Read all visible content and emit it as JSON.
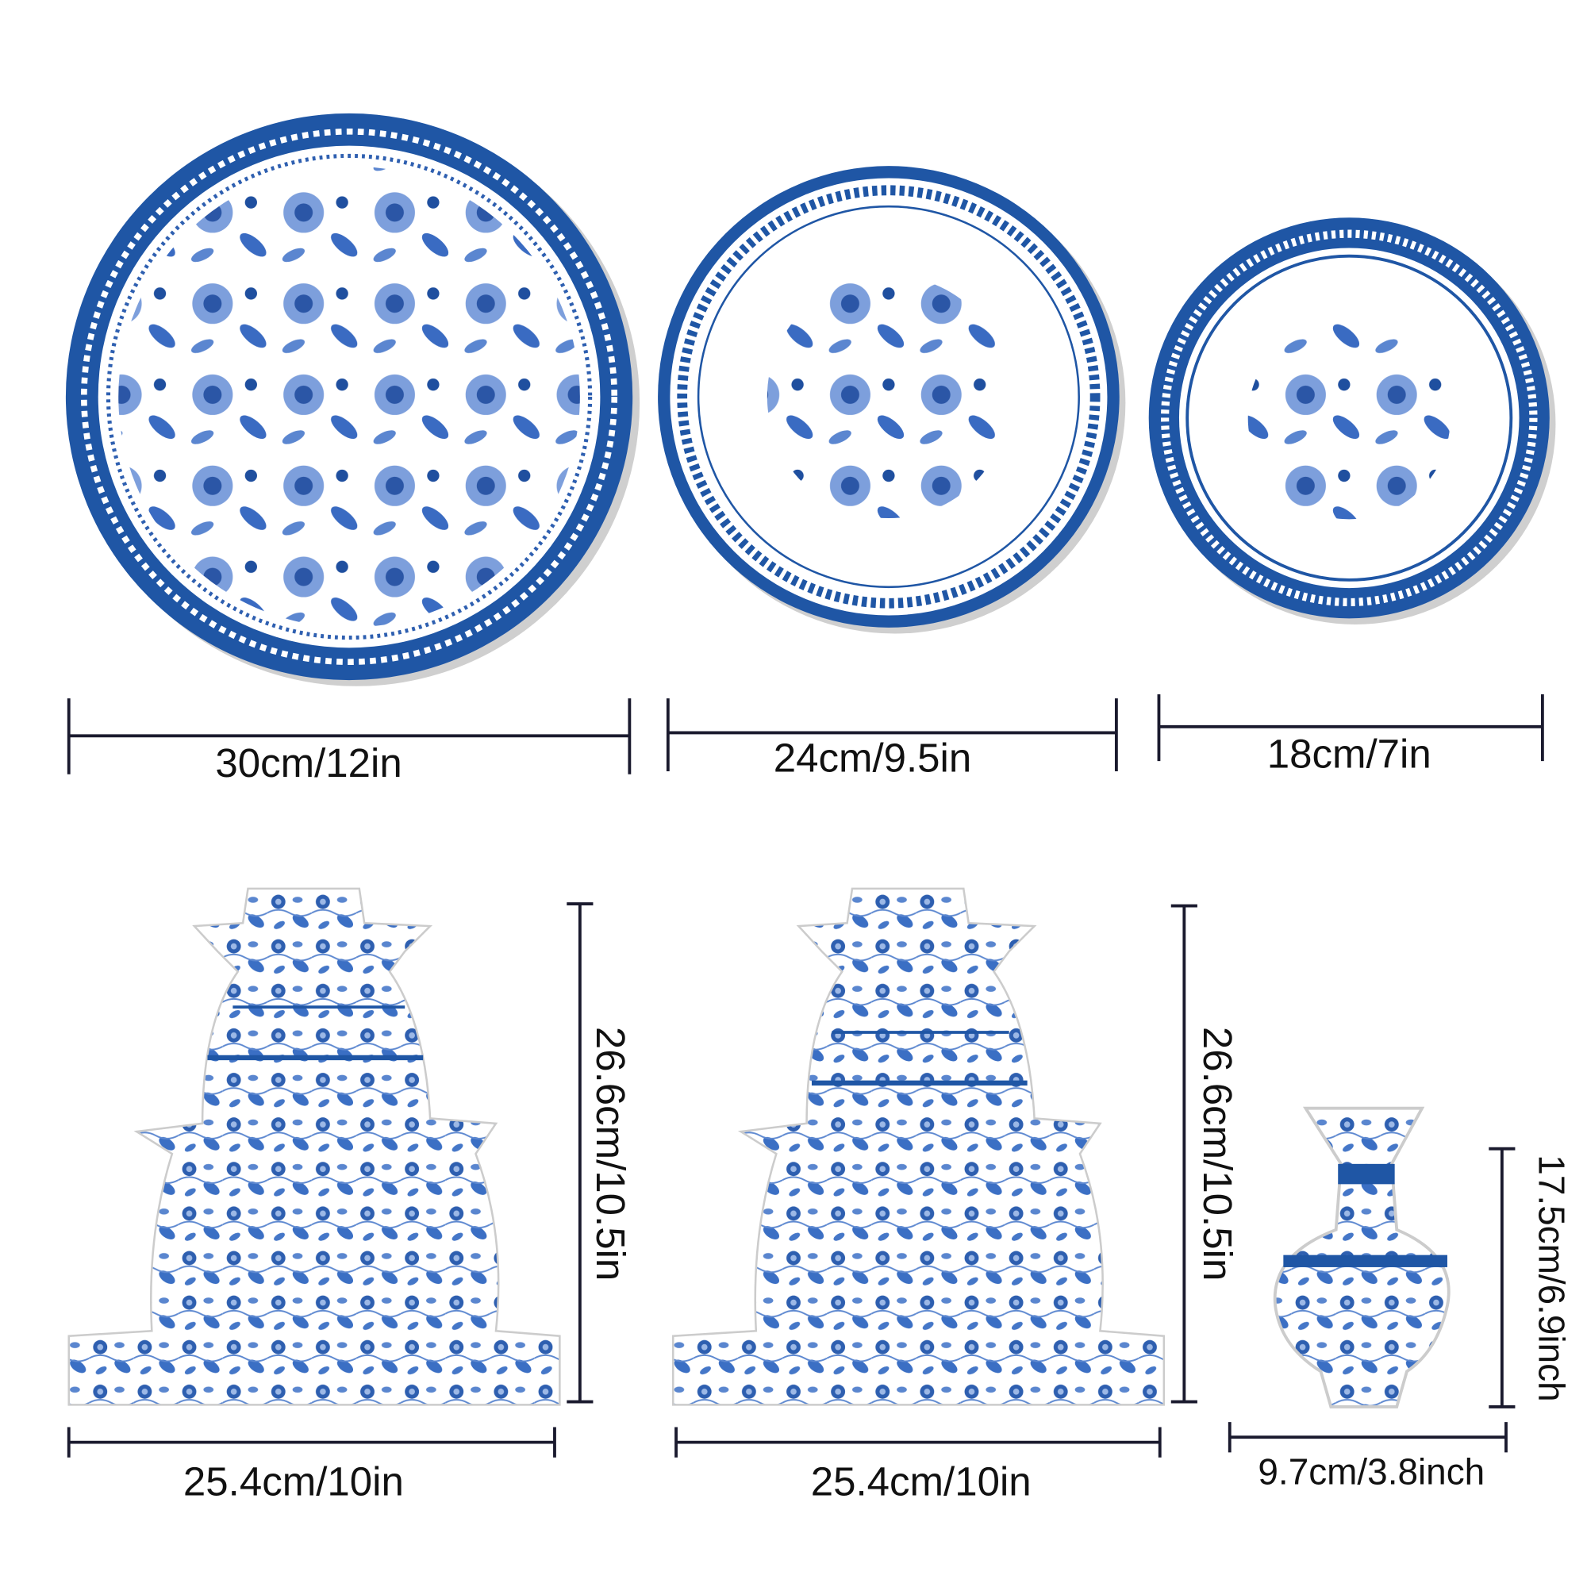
{
  "items": [
    {
      "label": "30cm/12in"
    },
    {
      "label": "24cm/9.5in"
    },
    {
      "label": "18cm/7in"
    },
    {
      "label": "26.6cm/10.5in"
    },
    {
      "label": "25.4cm/10in"
    },
    {
      "label": "26.6cm/10.5in"
    },
    {
      "label": "25.4cm/10in"
    },
    {
      "label": "17.5cm/6.9inch"
    },
    {
      "label": "9.7cm/3.8inch"
    }
  ]
}
